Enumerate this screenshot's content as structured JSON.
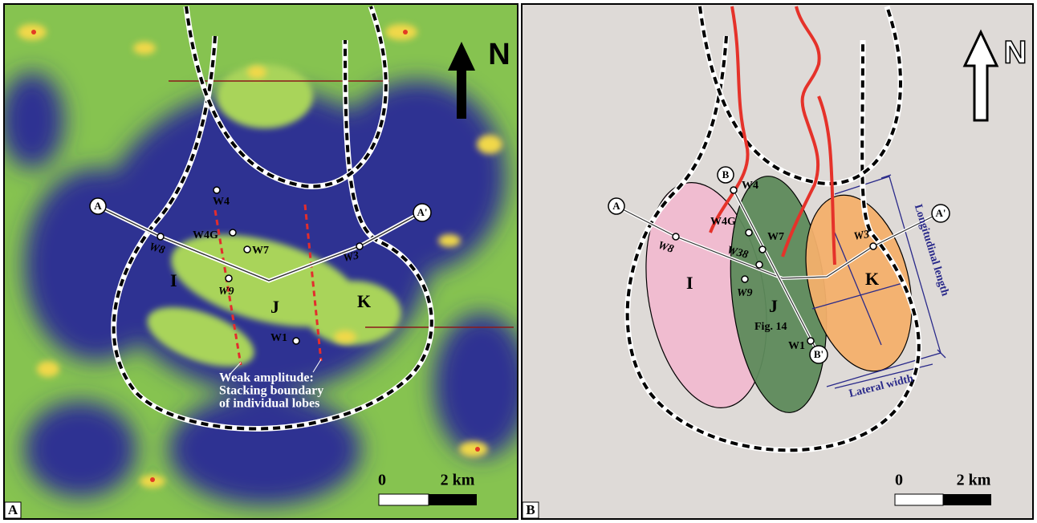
{
  "panels": [
    {
      "label": "A",
      "north": "N",
      "section": {
        "start": "A",
        "end": "A'"
      },
      "wells": {
        "W4": "W4",
        "W4G": "W4G",
        "W7": "W7",
        "W8": "W8",
        "W3": "W3",
        "W9": "W9",
        "W1": "W1"
      },
      "lobes": [
        "I",
        "J",
        "K"
      ],
      "annotation": [
        "Weak amplitude:",
        "Stacking boundary",
        "of individual lobes"
      ],
      "scale": {
        "start": "0",
        "end": "2 km"
      }
    },
    {
      "label": "B",
      "north": "N",
      "section": {
        "start": "A",
        "end": "A'"
      },
      "section2": {
        "start": "B",
        "end": "B'"
      },
      "wells": {
        "W4": "W4",
        "W4G": "W4G",
        "W7": "W7",
        "W8": "W8",
        "W38": "W38",
        "W3": "W3",
        "W9": "W9",
        "W1": "W1"
      },
      "lobes": [
        "I",
        "J",
        "K"
      ],
      "figure_ref": "Fig. 14",
      "dimensions": {
        "longitudinal": "Longitudinal length",
        "lateral": "Lateral width"
      },
      "scale": {
        "start": "0",
        "end": "2 km"
      }
    }
  ]
}
